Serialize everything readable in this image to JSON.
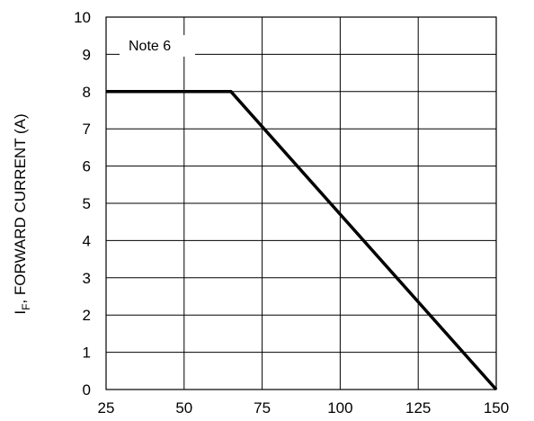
{
  "chart_data": {
    "type": "line",
    "title": "",
    "xlabel": "",
    "ylabel_main": "I",
    "ylabel_sub": "F",
    "ylabel_rest": ", FORWARD CURRENT (A)",
    "xlim": [
      25,
      150
    ],
    "ylim": [
      0,
      10
    ],
    "x_ticks": [
      25,
      50,
      75,
      100,
      125,
      150
    ],
    "y_ticks": [
      0,
      1,
      2,
      3,
      4,
      5,
      6,
      7,
      8,
      9,
      10
    ],
    "grid": true,
    "series": [
      {
        "x": [
          25,
          65,
          150
        ],
        "y": [
          8,
          8,
          0
        ]
      }
    ],
    "annotation": "Note 6"
  }
}
